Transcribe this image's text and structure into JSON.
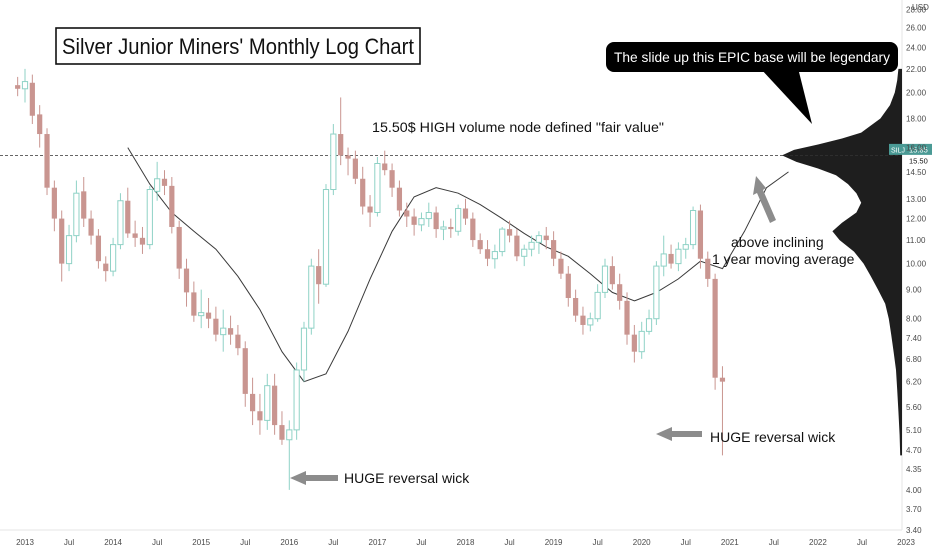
{
  "chart_data": {
    "type": "candlestick",
    "title": "Silver Junior Miners' Monthly Log Chart",
    "ticker": "SILJ",
    "last_price_label": "15.85",
    "fair_value_label": "15.50",
    "currency_label": "USD",
    "y_scale": "log",
    "ylim": [
      3.4,
      28.5
    ],
    "x_range": [
      "2012-12",
      "2023-01"
    ],
    "x_tick_labels": [
      {
        "t": "2013",
        "x": "2013-01"
      },
      {
        "t": "Jul",
        "x": "2013-07"
      },
      {
        "t": "2014",
        "x": "2014-01"
      },
      {
        "t": "Jul",
        "x": "2014-07"
      },
      {
        "t": "2015",
        "x": "2015-01"
      },
      {
        "t": "Jul",
        "x": "2015-07"
      },
      {
        "t": "2016",
        "x": "2016-01"
      },
      {
        "t": "Jul",
        "x": "2016-07"
      },
      {
        "t": "2017",
        "x": "2017-01"
      },
      {
        "t": "Jul",
        "x": "2017-07"
      },
      {
        "t": "2018",
        "x": "2018-01"
      },
      {
        "t": "Jul",
        "x": "2018-07"
      },
      {
        "t": "2019",
        "x": "2019-01"
      },
      {
        "t": "Jul",
        "x": "2019-07"
      },
      {
        "t": "2020",
        "x": "2020-01"
      },
      {
        "t": "Jul",
        "x": "2020-07"
      },
      {
        "t": "2021",
        "x": "2021-01"
      },
      {
        "t": "Jul",
        "x": "2021-07"
      },
      {
        "t": "2022",
        "x": "2022-01"
      },
      {
        "t": "Jul",
        "x": "2022-07"
      },
      {
        "t": "2023",
        "x": "2023-01"
      }
    ],
    "y_tick_labels": [
      "28.00",
      "26.00",
      "24.00",
      "22.00",
      "20.00",
      "18.00",
      "16.00",
      "14.50",
      "13.00",
      "12.00",
      "11.00",
      "10.00",
      "9.00",
      "8.00",
      "7.40",
      "6.80",
      "6.20",
      "5.60",
      "5.10",
      "4.70",
      "4.35",
      "4.00",
      "3.70",
      "3.40"
    ],
    "candles": [
      {
        "d": "2012-12",
        "o": 20.6,
        "h": 21.3,
        "l": 19.7,
        "c": 20.3
      },
      {
        "d": "2013-01",
        "o": 20.3,
        "h": 22.0,
        "l": 19.2,
        "c": 20.9
      },
      {
        "d": "2013-02",
        "o": 20.8,
        "h": 21.5,
        "l": 17.6,
        "c": 18.2
      },
      {
        "d": "2013-03",
        "o": 18.3,
        "h": 19.0,
        "l": 16.0,
        "c": 16.9
      },
      {
        "d": "2013-04",
        "o": 16.9,
        "h": 17.3,
        "l": 13.2,
        "c": 13.6
      },
      {
        "d": "2013-05",
        "o": 13.6,
        "h": 14.0,
        "l": 11.4,
        "c": 12.0
      },
      {
        "d": "2013-06",
        "o": 12.0,
        "h": 12.4,
        "l": 9.3,
        "c": 10.0
      },
      {
        "d": "2013-07",
        "o": 10.0,
        "h": 11.7,
        "l": 9.7,
        "c": 11.2
      },
      {
        "d": "2013-08",
        "o": 11.2,
        "h": 14.0,
        "l": 10.9,
        "c": 13.3
      },
      {
        "d": "2013-09",
        "o": 13.4,
        "h": 14.2,
        "l": 11.6,
        "c": 12.0
      },
      {
        "d": "2013-10",
        "o": 12.0,
        "h": 12.4,
        "l": 10.8,
        "c": 11.2
      },
      {
        "d": "2013-11",
        "o": 11.2,
        "h": 11.5,
        "l": 9.8,
        "c": 10.1
      },
      {
        "d": "2013-12",
        "o": 10.0,
        "h": 10.3,
        "l": 9.3,
        "c": 9.7
      },
      {
        "d": "2014-01",
        "o": 9.7,
        "h": 11.1,
        "l": 9.5,
        "c": 10.8
      },
      {
        "d": "2014-02",
        "o": 10.8,
        "h": 13.3,
        "l": 10.6,
        "c": 12.9
      },
      {
        "d": "2014-03",
        "o": 12.9,
        "h": 13.6,
        "l": 11.1,
        "c": 11.3
      },
      {
        "d": "2014-04",
        "o": 11.3,
        "h": 11.9,
        "l": 10.7,
        "c": 11.1
      },
      {
        "d": "2014-05",
        "o": 11.1,
        "h": 11.6,
        "l": 10.4,
        "c": 10.8
      },
      {
        "d": "2014-06",
        "o": 10.8,
        "h": 13.7,
        "l": 10.6,
        "c": 13.5
      },
      {
        "d": "2014-07",
        "o": 13.4,
        "h": 15.1,
        "l": 12.9,
        "c": 14.1
      },
      {
        "d": "2014-08",
        "o": 14.1,
        "h": 14.6,
        "l": 13.2,
        "c": 13.7
      },
      {
        "d": "2014-09",
        "o": 13.7,
        "h": 14.2,
        "l": 11.3,
        "c": 11.6
      },
      {
        "d": "2014-10",
        "o": 11.6,
        "h": 11.9,
        "l": 9.4,
        "c": 9.8
      },
      {
        "d": "2014-11",
        "o": 9.8,
        "h": 10.2,
        "l": 8.4,
        "c": 8.9
      },
      {
        "d": "2014-12",
        "o": 8.9,
        "h": 9.3,
        "l": 7.9,
        "c": 8.1
      },
      {
        "d": "2015-01",
        "o": 8.1,
        "h": 9.0,
        "l": 7.7,
        "c": 8.2
      },
      {
        "d": "2015-02",
        "o": 8.2,
        "h": 8.7,
        "l": 7.7,
        "c": 8.0
      },
      {
        "d": "2015-03",
        "o": 8.0,
        "h": 8.4,
        "l": 7.3,
        "c": 7.5
      },
      {
        "d": "2015-04",
        "o": 7.5,
        "h": 8.3,
        "l": 7.0,
        "c": 7.7
      },
      {
        "d": "2015-05",
        "o": 7.7,
        "h": 8.1,
        "l": 7.2,
        "c": 7.5
      },
      {
        "d": "2015-06",
        "o": 7.5,
        "h": 7.8,
        "l": 6.9,
        "c": 7.1
      },
      {
        "d": "2015-07",
        "o": 7.1,
        "h": 7.3,
        "l": 5.6,
        "c": 5.9
      },
      {
        "d": "2015-08",
        "o": 5.9,
        "h": 6.3,
        "l": 5.2,
        "c": 5.5
      },
      {
        "d": "2015-09",
        "o": 5.5,
        "h": 5.9,
        "l": 5.0,
        "c": 5.3
      },
      {
        "d": "2015-10",
        "o": 5.3,
        "h": 6.4,
        "l": 5.1,
        "c": 6.1
      },
      {
        "d": "2015-11",
        "o": 6.1,
        "h": 6.4,
        "l": 5.0,
        "c": 5.2
      },
      {
        "d": "2015-12",
        "o": 5.2,
        "h": 5.5,
        "l": 4.8,
        "c": 4.9
      },
      {
        "d": "2016-01",
        "o": 4.9,
        "h": 5.3,
        "l": 4.0,
        "c": 5.1
      },
      {
        "d": "2016-02",
        "o": 5.1,
        "h": 6.7,
        "l": 4.9,
        "c": 6.5
      },
      {
        "d": "2016-03",
        "o": 6.5,
        "h": 7.9,
        "l": 6.2,
        "c": 7.7
      },
      {
        "d": "2016-04",
        "o": 7.7,
        "h": 10.2,
        "l": 7.5,
        "c": 9.9
      },
      {
        "d": "2016-05",
        "o": 9.9,
        "h": 10.6,
        "l": 8.5,
        "c": 9.2
      },
      {
        "d": "2016-06",
        "o": 9.2,
        "h": 13.8,
        "l": 9.1,
        "c": 13.5
      },
      {
        "d": "2016-07",
        "o": 13.5,
        "h": 17.6,
        "l": 13.2,
        "c": 16.9
      },
      {
        "d": "2016-08",
        "o": 16.9,
        "h": 19.6,
        "l": 14.9,
        "c": 15.5
      },
      {
        "d": "2016-09",
        "o": 15.5,
        "h": 16.0,
        "l": 14.3,
        "c": 15.3
      },
      {
        "d": "2016-10",
        "o": 15.3,
        "h": 15.8,
        "l": 13.8,
        "c": 14.1
      },
      {
        "d": "2016-11",
        "o": 14.1,
        "h": 14.8,
        "l": 12.2,
        "c": 12.6
      },
      {
        "d": "2016-12",
        "o": 12.6,
        "h": 13.2,
        "l": 11.6,
        "c": 12.3
      },
      {
        "d": "2017-01",
        "o": 12.3,
        "h": 15.4,
        "l": 12.1,
        "c": 15.0
      },
      {
        "d": "2017-02",
        "o": 15.0,
        "h": 15.8,
        "l": 14.3,
        "c": 14.6
      },
      {
        "d": "2017-03",
        "o": 14.6,
        "h": 15.0,
        "l": 13.1,
        "c": 13.6
      },
      {
        "d": "2017-04",
        "o": 13.6,
        "h": 14.0,
        "l": 12.1,
        "c": 12.4
      },
      {
        "d": "2017-05",
        "o": 12.4,
        "h": 12.8,
        "l": 11.6,
        "c": 12.1
      },
      {
        "d": "2017-06",
        "o": 12.1,
        "h": 12.5,
        "l": 11.2,
        "c": 11.7
      },
      {
        "d": "2017-07",
        "o": 11.7,
        "h": 12.3,
        "l": 11.4,
        "c": 12.0
      },
      {
        "d": "2017-08",
        "o": 12.0,
        "h": 12.8,
        "l": 11.6,
        "c": 12.3
      },
      {
        "d": "2017-09",
        "o": 12.3,
        "h": 12.6,
        "l": 11.1,
        "c": 11.5
      },
      {
        "d": "2017-10",
        "o": 11.5,
        "h": 11.9,
        "l": 11.0,
        "c": 11.6
      },
      {
        "d": "2017-11",
        "o": 11.6,
        "h": 12.0,
        "l": 11.1,
        "c": 11.5
      },
      {
        "d": "2017-12",
        "o": 11.4,
        "h": 12.7,
        "l": 11.2,
        "c": 12.5
      },
      {
        "d": "2018-01",
        "o": 12.5,
        "h": 13.0,
        "l": 11.7,
        "c": 12.0
      },
      {
        "d": "2018-02",
        "o": 12.0,
        "h": 12.3,
        "l": 10.7,
        "c": 11.0
      },
      {
        "d": "2018-03",
        "o": 11.0,
        "h": 11.3,
        "l": 10.4,
        "c": 10.6
      },
      {
        "d": "2018-04",
        "o": 10.6,
        "h": 11.0,
        "l": 9.9,
        "c": 10.2
      },
      {
        "d": "2018-05",
        "o": 10.2,
        "h": 10.8,
        "l": 9.8,
        "c": 10.5
      },
      {
        "d": "2018-06",
        "o": 10.5,
        "h": 11.6,
        "l": 10.3,
        "c": 11.5
      },
      {
        "d": "2018-07",
        "o": 11.5,
        "h": 11.9,
        "l": 10.9,
        "c": 11.2
      },
      {
        "d": "2018-08",
        "o": 11.2,
        "h": 11.5,
        "l": 10.1,
        "c": 10.3
      },
      {
        "d": "2018-09",
        "o": 10.3,
        "h": 10.8,
        "l": 9.9,
        "c": 10.6
      },
      {
        "d": "2018-10",
        "o": 10.6,
        "h": 11.2,
        "l": 10.3,
        "c": 10.9
      },
      {
        "d": "2018-11",
        "o": 10.9,
        "h": 11.4,
        "l": 10.4,
        "c": 11.2
      },
      {
        "d": "2018-12",
        "o": 11.2,
        "h": 11.6,
        "l": 10.6,
        "c": 11.0
      },
      {
        "d": "2019-01",
        "o": 11.0,
        "h": 11.4,
        "l": 9.9,
        "c": 10.2
      },
      {
        "d": "2019-02",
        "o": 10.2,
        "h": 10.5,
        "l": 9.4,
        "c": 9.6
      },
      {
        "d": "2019-03",
        "o": 9.6,
        "h": 9.9,
        "l": 8.4,
        "c": 8.7
      },
      {
        "d": "2019-04",
        "o": 8.7,
        "h": 9.0,
        "l": 7.9,
        "c": 8.1
      },
      {
        "d": "2019-05",
        "o": 8.1,
        "h": 8.4,
        "l": 7.5,
        "c": 7.8
      },
      {
        "d": "2019-06",
        "o": 7.8,
        "h": 8.2,
        "l": 7.6,
        "c": 8.0
      },
      {
        "d": "2019-07",
        "o": 8.0,
        "h": 9.2,
        "l": 7.9,
        "c": 8.9
      },
      {
        "d": "2019-08",
        "o": 8.9,
        "h": 10.2,
        "l": 8.7,
        "c": 9.9
      },
      {
        "d": "2019-09",
        "o": 9.9,
        "h": 10.3,
        "l": 9.0,
        "c": 9.2
      },
      {
        "d": "2019-10",
        "o": 9.2,
        "h": 9.6,
        "l": 8.3,
        "c": 8.6
      },
      {
        "d": "2019-11",
        "o": 8.6,
        "h": 8.9,
        "l": 7.2,
        "c": 7.5
      },
      {
        "d": "2019-12",
        "o": 7.5,
        "h": 7.8,
        "l": 6.7,
        "c": 7.0
      },
      {
        "d": "2020-01",
        "o": 7.0,
        "h": 7.9,
        "l": 6.8,
        "c": 7.6
      },
      {
        "d": "2020-02",
        "o": 7.6,
        "h": 8.3,
        "l": 7.5,
        "c": 8.0
      },
      {
        "d": "2020-03",
        "o": 8.0,
        "h": 10.1,
        "l": 7.8,
        "c": 9.9
      },
      {
        "d": "2020-04",
        "o": 9.9,
        "h": 11.2,
        "l": 9.5,
        "c": 10.4
      },
      {
        "d": "2020-05",
        "o": 10.4,
        "h": 10.8,
        "l": 9.8,
        "c": 10.0
      },
      {
        "d": "2020-06",
        "o": 10.0,
        "h": 10.9,
        "l": 9.7,
        "c": 10.6
      },
      {
        "d": "2020-07",
        "o": 10.6,
        "h": 11.1,
        "l": 10.2,
        "c": 10.8
      },
      {
        "d": "2020-08",
        "o": 10.8,
        "h": 12.6,
        "l": 10.6,
        "c": 12.4
      },
      {
        "d": "2020-09",
        "o": 12.4,
        "h": 12.7,
        "l": 9.8,
        "c": 10.2
      },
      {
        "d": "2020-10",
        "o": 10.2,
        "h": 10.5,
        "l": 9.1,
        "c": 9.4
      },
      {
        "d": "2020-11",
        "o": 9.4,
        "h": 9.6,
        "l": 6.0,
        "c": 6.3
      },
      {
        "d": "2020-12",
        "o": 6.3,
        "h": 6.6,
        "l": 4.6,
        "c": 6.2
      }
    ],
    "moving_average": {
      "label": "1 year moving average",
      "points": [
        {
          "d": "2014-03",
          "v": 16.0
        },
        {
          "d": "2014-06",
          "v": 13.8
        },
        {
          "d": "2014-09",
          "v": 12.3
        },
        {
          "d": "2014-12",
          "v": 11.4
        },
        {
          "d": "2015-03",
          "v": 10.6
        },
        {
          "d": "2015-06",
          "v": 9.5
        },
        {
          "d": "2015-09",
          "v": 8.3
        },
        {
          "d": "2015-12",
          "v": 7.0
        },
        {
          "d": "2016-03",
          "v": 6.2
        },
        {
          "d": "2016-06",
          "v": 6.4
        },
        {
          "d": "2016-09",
          "v": 7.6
        },
        {
          "d": "2016-12",
          "v": 9.4
        },
        {
          "d": "2017-03",
          "v": 11.4
        },
        {
          "d": "2017-06",
          "v": 13.1
        },
        {
          "d": "2017-09",
          "v": 13.6
        },
        {
          "d": "2017-12",
          "v": 13.3
        },
        {
          "d": "2018-03",
          "v": 12.7
        },
        {
          "d": "2018-06",
          "v": 12.0
        },
        {
          "d": "2018-09",
          "v": 11.3
        },
        {
          "d": "2018-12",
          "v": 10.7
        },
        {
          "d": "2019-03",
          "v": 10.3
        },
        {
          "d": "2019-06",
          "v": 9.6
        },
        {
          "d": "2019-09",
          "v": 8.9
        },
        {
          "d": "2019-12",
          "v": 8.6
        },
        {
          "d": "2020-03",
          "v": 8.9
        },
        {
          "d": "2020-06",
          "v": 9.4
        },
        {
          "d": "2020-09",
          "v": 10.1
        },
        {
          "d": "2020-12",
          "v": 9.8
        },
        {
          "d": "2021-03",
          "v": 11.4
        },
        {
          "d": "2021-06",
          "v": 13.6
        },
        {
          "d": "2021-09",
          "v": 14.5
        }
      ]
    },
    "volume_profile": [
      {
        "p": 22.0,
        "w": 0.03
      },
      {
        "p": 21.0,
        "w": 0.04
      },
      {
        "p": 20.0,
        "w": 0.06
      },
      {
        "p": 19.0,
        "w": 0.1
      },
      {
        "p": 18.0,
        "w": 0.18
      },
      {
        "p": 17.0,
        "w": 0.34
      },
      {
        "p": 16.6,
        "w": 0.5
      },
      {
        "p": 16.2,
        "w": 0.7
      },
      {
        "p": 15.85,
        "w": 0.9
      },
      {
        "p": 15.5,
        "w": 1.0
      },
      {
        "p": 15.1,
        "w": 0.88
      },
      {
        "p": 14.7,
        "w": 0.7
      },
      {
        "p": 14.3,
        "w": 0.55
      },
      {
        "p": 13.8,
        "w": 0.45
      },
      {
        "p": 13.3,
        "w": 0.38
      },
      {
        "p": 12.8,
        "w": 0.34
      },
      {
        "p": 12.3,
        "w": 0.38
      },
      {
        "p": 11.8,
        "w": 0.5
      },
      {
        "p": 11.4,
        "w": 0.58
      },
      {
        "p": 11.0,
        "w": 0.52
      },
      {
        "p": 10.5,
        "w": 0.4
      },
      {
        "p": 10.0,
        "w": 0.32
      },
      {
        "p": 9.5,
        "w": 0.26
      },
      {
        "p": 9.0,
        "w": 0.2
      },
      {
        "p": 8.5,
        "w": 0.14
      },
      {
        "p": 8.0,
        "w": 0.11
      },
      {
        "p": 7.5,
        "w": 0.09
      },
      {
        "p": 7.0,
        "w": 0.07
      },
      {
        "p": 6.5,
        "w": 0.05
      },
      {
        "p": 6.0,
        "w": 0.04
      },
      {
        "p": 5.5,
        "w": 0.03
      },
      {
        "p": 5.0,
        "w": 0.02
      },
      {
        "p": 4.6,
        "w": 0.015
      }
    ],
    "annotations": {
      "fair_value_text": "15.50$ HIGH volume node defined \"fair value\"",
      "callout_text": "The slide up this EPIC base will be legendary",
      "wick_label_1": "HUGE reversal wick",
      "wick_label_2": "HUGE reversal wick",
      "ma_label_line1": "above inclining",
      "ma_label_line2": "1 year moving average"
    },
    "colors": {
      "up": "#8fd2c6",
      "down": "#c99590",
      "up_filled": "#26a69a",
      "ma_line": "#3a3a3a",
      "profile": "#1e1e1e",
      "arrow": "#8c8c8c",
      "callout_bg": "#000000",
      "callout_text": "#ffffff"
    }
  }
}
